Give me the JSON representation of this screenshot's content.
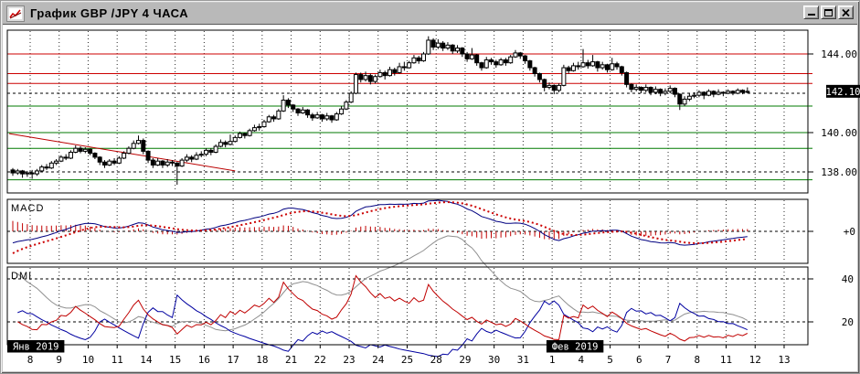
{
  "window": {
    "title": "График GBP /JPY 4 ЧАСА"
  },
  "colors": {
    "window_chrome": "#b9b9b9",
    "panel_bg": "#ffffff",
    "grid": "#2a2a2a",
    "candle_outline": "#000000",
    "up_candle_fill": "#ffffff",
    "down_candle_fill": "#000000",
    "resistance_line": "#cc0000",
    "support_line": "#007a00",
    "trendline": "#bb0000",
    "macd_line": "#000080",
    "macd_signal": "#cc0000",
    "macd_histogram": "#c00000",
    "plus_di": "#c00000",
    "minus_di": "#0000a0",
    "adx": "#909090",
    "badge_bg": "#000000",
    "badge_text": "#ffffff"
  },
  "price_axis": {
    "labels": [
      {
        "text": "144.00",
        "price": 144.0
      },
      {
        "text": "140.00",
        "price": 140.0
      },
      {
        "text": "138.00",
        "price": 138.0
      }
    ],
    "current_price_badge": {
      "text": "142.10",
      "price": 142.1
    },
    "red_tick_prices": [
      143.0,
      142.5
    ],
    "green_tick_prices": [
      141.35,
      139.2,
      137.6
    ]
  },
  "macd_axis": {
    "zero_label": "+0",
    "zero_value": 0
  },
  "dmi_axis": {
    "labels": [
      {
        "text": "40",
        "value": 40
      },
      {
        "text": "20",
        "value": 20
      }
    ]
  },
  "x_axis": {
    "day_labels": [
      "8",
      "9",
      "10",
      "11",
      "14",
      "15",
      "16",
      "17",
      "18",
      "21",
      "22",
      "23",
      "24",
      "25",
      "28",
      "29",
      "30",
      "31",
      "1",
      "4",
      "5",
      "6",
      "7",
      "8",
      "11",
      "12",
      "13"
    ],
    "month_badges": [
      {
        "text": "Янв 2019",
        "position": "left-edge"
      },
      {
        "text": "Фев 2019",
        "before_label_index": 18
      }
    ]
  },
  "panels": {
    "macd": {
      "title": "MACD"
    },
    "dmi": {
      "title": "DMI"
    }
  },
  "levels": {
    "red_lines": [
      144.0,
      143.0,
      142.5
    ],
    "green_lines": [
      141.35,
      140.0,
      139.2,
      137.6
    ],
    "dashed_gridlines": [
      144.0,
      142.0,
      140.0,
      138.0
    ]
  },
  "trendline": {
    "from": {
      "candle_index": 0,
      "price": 139.95
    },
    "to": {
      "candle_index": 46,
      "price": 138.05
    }
  },
  "chart_data": {
    "type": "candlestick",
    "symbol": "GBP/JPY",
    "timeframe_label": "4 ЧАСА",
    "leading_candles": 4,
    "candles_per_day": 6,
    "last_day_candles": 5,
    "indicators": {
      "macd": {
        "fast": 12,
        "slow": 26,
        "signal": 9
      },
      "dmi": {
        "period": 14
      }
    },
    "candles": [
      [
        138.1,
        138.2,
        137.8,
        137.95
      ],
      [
        137.95,
        138.15,
        137.85,
        138.05
      ],
      [
        138.05,
        138.1,
        137.7,
        137.9
      ],
      [
        137.9,
        138.05,
        137.75,
        137.95
      ],
      [
        137.95,
        138.1,
        137.65,
        137.9
      ],
      [
        137.9,
        138.15,
        137.8,
        138.05
      ],
      [
        138.05,
        138.35,
        138.0,
        138.25
      ],
      [
        138.25,
        138.4,
        138.1,
        138.2
      ],
      [
        138.2,
        138.55,
        138.15,
        138.45
      ],
      [
        138.45,
        138.65,
        138.35,
        138.55
      ],
      [
        138.55,
        138.85,
        138.5,
        138.75
      ],
      [
        138.75,
        138.9,
        138.6,
        138.7
      ],
      [
        138.7,
        139.1,
        138.65,
        139.0
      ],
      [
        139.0,
        139.35,
        138.95,
        139.2
      ],
      [
        139.2,
        139.3,
        138.95,
        139.05
      ],
      [
        139.05,
        139.25,
        138.95,
        139.15
      ],
      [
        139.15,
        139.2,
        138.85,
        138.95
      ],
      [
        138.95,
        139.0,
        138.65,
        138.75
      ],
      [
        138.75,
        138.8,
        138.35,
        138.5
      ],
      [
        138.5,
        138.6,
        138.2,
        138.35
      ],
      [
        138.35,
        138.65,
        138.3,
        138.55
      ],
      [
        138.55,
        138.7,
        138.35,
        138.45
      ],
      [
        138.45,
        138.8,
        138.4,
        138.7
      ],
      [
        138.7,
        139.05,
        138.65,
        138.95
      ],
      [
        138.95,
        139.3,
        138.9,
        139.2
      ],
      [
        139.2,
        139.6,
        139.15,
        139.45
      ],
      [
        139.45,
        139.85,
        139.4,
        139.6
      ],
      [
        139.6,
        139.7,
        138.9,
        139.05
      ],
      [
        139.05,
        139.1,
        138.45,
        138.6
      ],
      [
        138.6,
        138.7,
        138.2,
        138.35
      ],
      [
        138.35,
        138.7,
        138.3,
        138.55
      ],
      [
        138.55,
        138.6,
        138.2,
        138.35
      ],
      [
        138.35,
        138.65,
        138.25,
        138.5
      ],
      [
        138.5,
        138.6,
        138.3,
        138.45
      ],
      [
        138.45,
        138.5,
        137.35,
        138.3
      ],
      [
        138.3,
        138.7,
        138.25,
        138.6
      ],
      [
        138.6,
        138.9,
        138.5,
        138.75
      ],
      [
        138.75,
        138.85,
        138.5,
        138.65
      ],
      [
        138.65,
        139.0,
        138.6,
        138.85
      ],
      [
        138.85,
        139.05,
        138.75,
        138.9
      ],
      [
        138.9,
        139.2,
        138.8,
        139.1
      ],
      [
        139.1,
        139.2,
        138.85,
        139.0
      ],
      [
        139.0,
        139.4,
        138.95,
        139.3
      ],
      [
        139.3,
        139.65,
        139.25,
        139.5
      ],
      [
        139.5,
        139.6,
        139.25,
        139.4
      ],
      [
        139.4,
        139.9,
        139.35,
        139.55
      ],
      [
        139.55,
        139.85,
        139.5,
        139.75
      ],
      [
        139.75,
        140.05,
        139.7,
        139.95
      ],
      [
        139.95,
        140.0,
        139.7,
        139.85
      ],
      [
        139.85,
        140.2,
        139.8,
        140.1
      ],
      [
        140.1,
        140.4,
        140.05,
        140.25
      ],
      [
        140.25,
        140.45,
        140.1,
        140.3
      ],
      [
        140.3,
        140.65,
        140.25,
        140.55
      ],
      [
        140.55,
        140.9,
        140.5,
        140.8
      ],
      [
        140.8,
        140.9,
        140.55,
        140.7
      ],
      [
        140.7,
        141.2,
        140.65,
        141.1
      ],
      [
        141.1,
        141.9,
        141.05,
        141.65
      ],
      [
        141.65,
        141.75,
        141.25,
        141.4
      ],
      [
        141.4,
        141.45,
        141.05,
        141.2
      ],
      [
        141.2,
        141.25,
        140.85,
        141.0
      ],
      [
        141.0,
        141.3,
        140.95,
        141.15
      ],
      [
        141.15,
        141.2,
        140.75,
        140.9
      ],
      [
        140.9,
        141.0,
        140.6,
        140.75
      ],
      [
        140.75,
        141.05,
        140.7,
        140.9
      ],
      [
        140.9,
        140.95,
        140.55,
        140.7
      ],
      [
        140.7,
        141.0,
        140.6,
        140.85
      ],
      [
        140.85,
        140.9,
        140.5,
        140.65
      ],
      [
        140.65,
        141.05,
        140.6,
        140.95
      ],
      [
        140.95,
        141.35,
        140.9,
        141.2
      ],
      [
        141.2,
        141.65,
        141.15,
        141.55
      ],
      [
        141.55,
        142.1,
        141.5,
        142.0
      ],
      [
        142.0,
        143.05,
        141.95,
        142.95
      ],
      [
        142.95,
        143.05,
        142.55,
        142.7
      ],
      [
        142.7,
        143.1,
        142.6,
        142.9
      ],
      [
        142.9,
        143.0,
        142.45,
        142.6
      ],
      [
        142.6,
        142.95,
        142.5,
        142.85
      ],
      [
        142.85,
        143.2,
        142.8,
        143.05
      ],
      [
        143.05,
        143.15,
        142.7,
        142.9
      ],
      [
        142.9,
        143.35,
        142.85,
        143.2
      ],
      [
        143.2,
        143.3,
        142.9,
        143.05
      ],
      [
        143.05,
        143.55,
        143.0,
        143.35
      ],
      [
        143.35,
        143.6,
        143.15,
        143.3
      ],
      [
        143.3,
        143.65,
        143.25,
        143.55
      ],
      [
        143.55,
        143.95,
        143.5,
        143.8
      ],
      [
        143.8,
        143.9,
        143.5,
        143.65
      ],
      [
        143.65,
        144.1,
        143.6,
        144.0
      ],
      [
        144.0,
        144.9,
        143.95,
        144.7
      ],
      [
        144.7,
        144.8,
        144.2,
        144.35
      ],
      [
        144.35,
        144.75,
        144.25,
        144.55
      ],
      [
        144.55,
        144.65,
        144.15,
        144.3
      ],
      [
        144.3,
        144.6,
        144.2,
        144.45
      ],
      [
        144.45,
        144.5,
        144.0,
        144.15
      ],
      [
        144.15,
        144.45,
        144.05,
        144.3
      ],
      [
        144.3,
        144.35,
        143.85,
        144.0
      ],
      [
        144.0,
        144.1,
        143.6,
        143.75
      ],
      [
        143.75,
        144.3,
        143.7,
        143.95
      ],
      [
        143.95,
        144.0,
        143.4,
        143.55
      ],
      [
        143.55,
        143.6,
        143.15,
        143.3
      ],
      [
        143.3,
        143.85,
        143.25,
        143.7
      ],
      [
        143.7,
        143.8,
        143.45,
        143.6
      ],
      [
        143.6,
        143.7,
        143.3,
        143.45
      ],
      [
        143.45,
        143.8,
        143.4,
        143.7
      ],
      [
        143.7,
        143.8,
        143.4,
        143.55
      ],
      [
        143.55,
        143.95,
        143.5,
        143.85
      ],
      [
        143.85,
        144.2,
        143.8,
        144.05
      ],
      [
        144.05,
        144.1,
        143.75,
        143.9
      ],
      [
        143.9,
        143.95,
        143.5,
        143.65
      ],
      [
        143.65,
        143.7,
        143.15,
        143.3
      ],
      [
        143.3,
        143.35,
        142.85,
        143.0
      ],
      [
        143.0,
        143.05,
        142.55,
        142.7
      ],
      [
        142.7,
        142.75,
        142.1,
        142.3
      ],
      [
        142.3,
        142.55,
        142.2,
        142.4
      ],
      [
        142.4,
        142.45,
        141.95,
        142.15
      ],
      [
        142.15,
        142.5,
        142.05,
        142.4
      ],
      [
        142.4,
        143.45,
        142.35,
        143.3
      ],
      [
        143.3,
        143.4,
        143.0,
        143.15
      ],
      [
        143.15,
        143.55,
        143.1,
        143.4
      ],
      [
        143.4,
        143.6,
        143.2,
        143.35
      ],
      [
        143.35,
        144.25,
        143.3,
        143.55
      ],
      [
        143.55,
        143.7,
        143.25,
        143.4
      ],
      [
        143.4,
        143.95,
        143.35,
        143.6
      ],
      [
        143.6,
        143.65,
        143.1,
        143.3
      ],
      [
        143.3,
        143.6,
        143.2,
        143.45
      ],
      [
        143.45,
        143.5,
        143.05,
        143.2
      ],
      [
        143.2,
        143.8,
        143.15,
        143.5
      ],
      [
        143.5,
        143.6,
        143.2,
        143.35
      ],
      [
        143.35,
        143.4,
        142.9,
        143.05
      ],
      [
        143.05,
        143.1,
        142.3,
        142.45
      ],
      [
        142.45,
        142.5,
        142.05,
        142.2
      ],
      [
        142.2,
        142.45,
        142.1,
        142.3
      ],
      [
        142.3,
        142.35,
        142.0,
        142.15
      ],
      [
        142.15,
        142.45,
        142.05,
        142.3
      ],
      [
        142.3,
        142.35,
        141.9,
        142.05
      ],
      [
        142.05,
        142.35,
        141.95,
        142.2
      ],
      [
        142.2,
        142.25,
        141.85,
        142.0
      ],
      [
        142.0,
        142.25,
        141.9,
        142.1
      ],
      [
        142.1,
        142.4,
        142.0,
        142.25
      ],
      [
        142.25,
        142.3,
        141.8,
        141.95
      ],
      [
        141.95,
        142.0,
        141.15,
        141.45
      ],
      [
        141.45,
        141.85,
        141.35,
        141.7
      ],
      [
        141.7,
        142.0,
        141.6,
        141.85
      ],
      [
        141.85,
        142.05,
        141.75,
        141.9
      ],
      [
        141.9,
        142.15,
        141.8,
        142.05
      ],
      [
        142.05,
        142.1,
        141.7,
        141.9
      ],
      [
        141.9,
        142.2,
        141.85,
        142.1
      ],
      [
        142.1,
        142.15,
        141.8,
        141.95
      ],
      [
        141.95,
        142.2,
        141.9,
        142.05
      ],
      [
        142.05,
        142.1,
        141.85,
        142.0
      ],
      [
        142.0,
        142.2,
        141.95,
        142.1
      ],
      [
        142.1,
        142.15,
        141.9,
        142.0
      ],
      [
        142.0,
        142.25,
        141.95,
        142.15
      ],
      [
        142.15,
        142.2,
        141.95,
        142.05
      ],
      [
        142.05,
        142.3,
        142.0,
        142.1
      ]
    ]
  }
}
